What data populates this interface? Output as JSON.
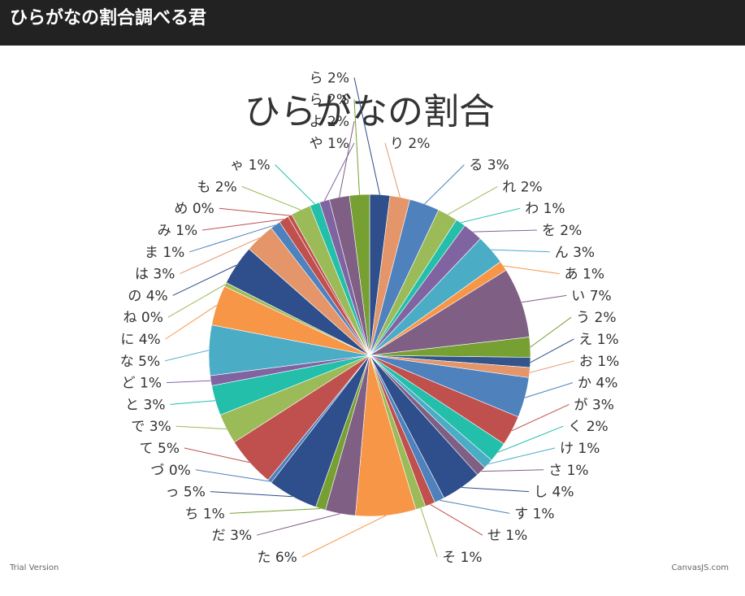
{
  "app": {
    "title": "ひらがなの割合調べる君"
  },
  "chart_data": {
    "type": "pie",
    "title": "ひらがなの割合",
    "slices": [
      {
        "label": "ら 2%",
        "value": 2,
        "color": "#2e4e8c"
      },
      {
        "label": "り 2%",
        "value": 2,
        "color": "#e4956a"
      },
      {
        "label": "る 3%",
        "value": 3,
        "color": "#4f81bd"
      },
      {
        "label": "れ 2%",
        "value": 2,
        "color": "#9bbb59"
      },
      {
        "label": "わ 1%",
        "value": 1,
        "color": "#23bfaa"
      },
      {
        "label": "を 2%",
        "value": 2,
        "color": "#8064a2"
      },
      {
        "label": "ん 3%",
        "value": 3,
        "color": "#4bacc6"
      },
      {
        "label": "あ 1%",
        "value": 1,
        "color": "#f79646"
      },
      {
        "label": "い 7%",
        "value": 7,
        "color": "#7f6084"
      },
      {
        "label": "う 2%",
        "value": 2,
        "color": "#77a033"
      },
      {
        "label": "え 1%",
        "value": 1,
        "color": "#33558b"
      },
      {
        "label": "お 1%",
        "value": 1,
        "color": "#e4956a"
      },
      {
        "label": "か 4%",
        "value": 4,
        "color": "#4f81bd"
      },
      {
        "label": "が 3%",
        "value": 3,
        "color": "#c0504d"
      },
      {
        "label": "く 2%",
        "value": 2,
        "color": "#23bfaa"
      },
      {
        "label": "け 1%",
        "value": 1,
        "color": "#4bacc6"
      },
      {
        "label": "さ 1%",
        "value": 1,
        "color": "#7f6084"
      },
      {
        "label": "し 4%",
        "value": 4,
        "color": "#2e4e8c"
      },
      {
        "label": "す 1%",
        "value": 1,
        "color": "#4f81bd"
      },
      {
        "label": "せ 1%",
        "value": 1,
        "color": "#c0504d"
      },
      {
        "label": "そ 1%",
        "value": 1,
        "color": "#9bbb59"
      },
      {
        "label": "た 6%",
        "value": 6,
        "color": "#f79646"
      },
      {
        "label": "だ 3%",
        "value": 3,
        "color": "#7f6084"
      },
      {
        "label": "ち 1%",
        "value": 1,
        "color": "#77a033"
      },
      {
        "label": "っ 5%",
        "value": 5,
        "color": "#2e4e8c"
      },
      {
        "label": "づ 0%",
        "value": 0.4,
        "color": "#4f81bd"
      },
      {
        "label": "て 5%",
        "value": 5,
        "color": "#c0504d"
      },
      {
        "label": "で 3%",
        "value": 3,
        "color": "#9bbb59"
      },
      {
        "label": "と 3%",
        "value": 3,
        "color": "#23bfaa"
      },
      {
        "label": "ど 1%",
        "value": 1,
        "color": "#8064a2"
      },
      {
        "label": "な 5%",
        "value": 5,
        "color": "#4bacc6"
      },
      {
        "label": "に 4%",
        "value": 4,
        "color": "#f79646"
      },
      {
        "label": "ね 0%",
        "value": 0.4,
        "color": "#9bbb59"
      },
      {
        "label": "の 4%",
        "value": 4,
        "color": "#2e4e8c"
      },
      {
        "label": "は 3%",
        "value": 3,
        "color": "#e4956a"
      },
      {
        "label": "ま 1%",
        "value": 1,
        "color": "#4f81bd"
      },
      {
        "label": "み 1%",
        "value": 1,
        "color": "#c0504d"
      },
      {
        "label": "め 0%",
        "value": 0.4,
        "color": "#c0504d"
      },
      {
        "label": "も 2%",
        "value": 2,
        "color": "#9bbb59"
      },
      {
        "label": "ゃ 1%",
        "value": 1,
        "color": "#23bfaa"
      },
      {
        "label": "や 1%",
        "value": 1,
        "color": "#8064a2"
      },
      {
        "label": "よ 2%",
        "value": 2,
        "color": "#7f6084"
      },
      {
        "label": "ら 2%",
        "value": 2,
        "color": "#77a033"
      }
    ],
    "start_angle_deg": -90
  },
  "footer": {
    "left": "Trial Version",
    "right": "CanvasJS.com"
  }
}
